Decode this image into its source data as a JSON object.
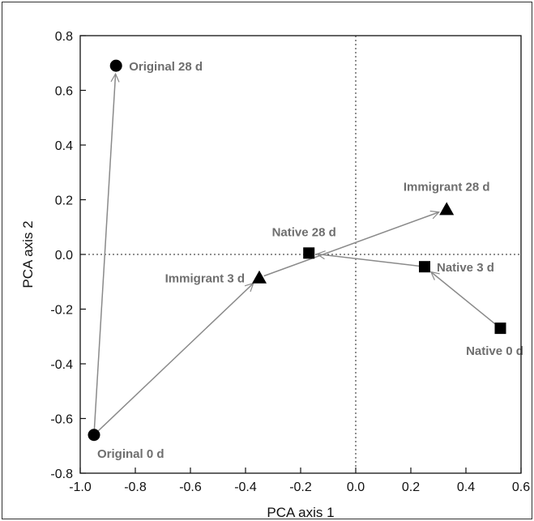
{
  "chart_data": {
    "type": "scatter",
    "title": "",
    "xlabel": "PCA axis 1",
    "ylabel": "PCA axis 2",
    "xlim": [
      -1.0,
      0.6
    ],
    "ylim": [
      -0.8,
      0.8
    ],
    "x_ticks": [
      -1.0,
      -0.8,
      -0.6,
      -0.4,
      -0.2,
      0.0,
      0.2,
      0.4,
      0.6
    ],
    "y_ticks": [
      -0.8,
      -0.6,
      -0.4,
      -0.2,
      0.0,
      0.2,
      0.4,
      0.6,
      0.8
    ],
    "x_tick_labels": [
      "-1.0",
      "-0.8",
      "-0.6",
      "-0.4",
      "-0.2",
      "0.0",
      "0.2",
      "0.4",
      "0.6"
    ],
    "y_tick_labels": [
      "-0.8",
      "-0.6",
      "-0.4",
      "-0.2",
      "0.0",
      "0.2",
      "0.4",
      "0.6",
      "0.8"
    ],
    "grid": false,
    "reference_lines": [
      {
        "axis": "x",
        "value": 0.0,
        "style": "dotted"
      },
      {
        "axis": "y",
        "value": 0.0,
        "style": "dotted"
      }
    ],
    "series": [
      {
        "group": "Original",
        "marker": "circle",
        "points": [
          {
            "label": "Original 0 d",
            "x": -0.95,
            "y": -0.66
          },
          {
            "label": "Original 28 d",
            "x": -0.87,
            "y": 0.69
          }
        ]
      },
      {
        "group": "Immigrant",
        "marker": "triangle",
        "points": [
          {
            "label": "Immigrant 3 d",
            "x": -0.35,
            "y": -0.085
          },
          {
            "label": "Immigrant 28 d",
            "x": 0.33,
            "y": 0.165
          }
        ]
      },
      {
        "group": "Native",
        "marker": "square",
        "points": [
          {
            "label": "Native 0 d",
            "x": 0.525,
            "y": -0.27
          },
          {
            "label": "Native 3 d",
            "x": 0.25,
            "y": -0.045
          },
          {
            "label": "Native 28 d",
            "x": -0.17,
            "y": 0.005
          }
        ]
      }
    ],
    "arrows": [
      {
        "from": [
          -0.95,
          -0.66
        ],
        "to": [
          -0.87,
          0.69
        ]
      },
      {
        "from": [
          -0.95,
          -0.66
        ],
        "to": [
          -0.35,
          -0.085
        ]
      },
      {
        "from": [
          -0.35,
          -0.085
        ],
        "to": [
          0.33,
          0.165
        ]
      },
      {
        "from": [
          0.525,
          -0.27
        ],
        "to": [
          0.25,
          -0.045
        ]
      },
      {
        "from": [
          0.25,
          -0.045
        ],
        "to": [
          -0.17,
          0.005
        ]
      }
    ],
    "colors": {
      "marker": "#000000",
      "arrow": "#8a8a8a",
      "label": "#6e6e6e",
      "axis": "#111111"
    }
  }
}
